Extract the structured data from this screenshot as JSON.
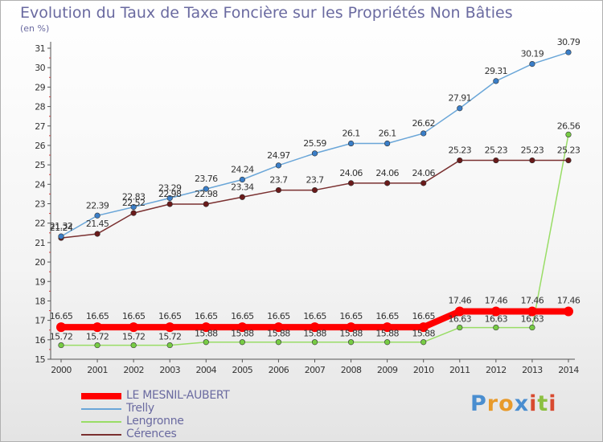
{
  "header": {
    "title": "Evolution du Taux de Taxe Foncière sur les Propriétés Non Bâties",
    "unit": "(en %)"
  },
  "brand": {
    "letters": [
      "P",
      "r",
      "o",
      "x",
      "i",
      "t",
      "i"
    ],
    "colors": [
      "#4a8ed0",
      "#e89a2a",
      "#e89a2a",
      "#4a8ed0",
      "#d84a30",
      "#8cc040",
      "#d84a30"
    ]
  },
  "chart_data": {
    "type": "line",
    "title": "Evolution du Taux de Taxe Foncière sur les Propriétés Non Bâties",
    "ylabel": "(en %)",
    "xlabel": "",
    "ylim": [
      15,
      31
    ],
    "yticks": [
      15,
      16,
      17,
      18,
      19,
      20,
      21,
      22,
      23,
      24,
      25,
      26,
      27,
      28,
      29,
      30,
      31
    ],
    "categories": [
      "2000",
      "2001",
      "2002",
      "2003",
      "2004",
      "2005",
      "2006",
      "2007",
      "2008",
      "2009",
      "2010",
      "2011",
      "2012",
      "2013",
      "2014"
    ],
    "series": [
      {
        "name": "Lengronne",
        "color": "#99dd66",
        "marker": "#77cc44",
        "values": [
          15.72,
          15.72,
          15.72,
          15.72,
          15.88,
          15.88,
          15.88,
          15.88,
          15.88,
          15.88,
          15.88,
          16.63,
          16.63,
          16.63,
          26.56
        ],
        "labels": [
          "15.72",
          "15.72",
          "15.72",
          "15.72",
          "15.88",
          "15.88",
          "15.88",
          "15.88",
          "15.88",
          "15.88",
          "15.88",
          "16.63",
          "16.63",
          "16.63",
          "26.56"
        ]
      },
      {
        "name": "Cérences",
        "color": "#7a3030",
        "marker": "#6a1a1a",
        "values": [
          21.24,
          21.45,
          22.52,
          22.98,
          22.98,
          23.34,
          23.7,
          23.7,
          24.06,
          24.06,
          24.06,
          25.23,
          25.23,
          25.23,
          25.23
        ],
        "labels": [
          "21.24",
          "21.45",
          "22.52",
          "22.98",
          "22.98",
          "23.34",
          "23.7",
          "23.7",
          "24.06",
          "24.06",
          "24.06",
          "25.23",
          "25.23",
          "25.23",
          "25.23"
        ]
      },
      {
        "name": "Trelly",
        "color": "#6aa6d8",
        "marker": "#3a7ec8",
        "values": [
          21.32,
          22.39,
          22.83,
          23.29,
          23.76,
          24.24,
          24.97,
          25.59,
          26.1,
          26.1,
          26.62,
          27.91,
          29.31,
          30.19,
          30.79
        ],
        "labels": [
          "21.32",
          "22.39",
          "22.83",
          "23.29",
          "23.76",
          "24.24",
          "24.97",
          "25.59",
          "26.1",
          "26.1",
          "26.62",
          "27.91",
          "29.31",
          "30.19",
          "30.79"
        ]
      },
      {
        "name": "LE MESNIL-AUBERT",
        "color": "#ff0000",
        "marker": "#ff0000",
        "values": [
          16.65,
          16.65,
          16.65,
          16.65,
          16.65,
          16.65,
          16.65,
          16.65,
          16.65,
          16.65,
          16.65,
          17.46,
          17.46,
          17.46,
          17.46
        ],
        "labels": [
          "16.65",
          "16.65",
          "16.65",
          "16.65",
          "16.65",
          "16.65",
          "16.65",
          "16.65",
          "16.65",
          "16.65",
          "16.65",
          "17.46",
          "17.46",
          "17.46",
          "17.46"
        ]
      }
    ],
    "legend": [
      {
        "name": "LE MESNIL-AUBERT",
        "color": "#ff0000"
      },
      {
        "name": "Trelly",
        "color": "#6aa6d8"
      },
      {
        "name": "Lengronne",
        "color": "#99dd66"
      },
      {
        "name": "Cérences",
        "color": "#7a3030"
      }
    ],
    "legend_position": "bottom-left",
    "grid": false
  }
}
